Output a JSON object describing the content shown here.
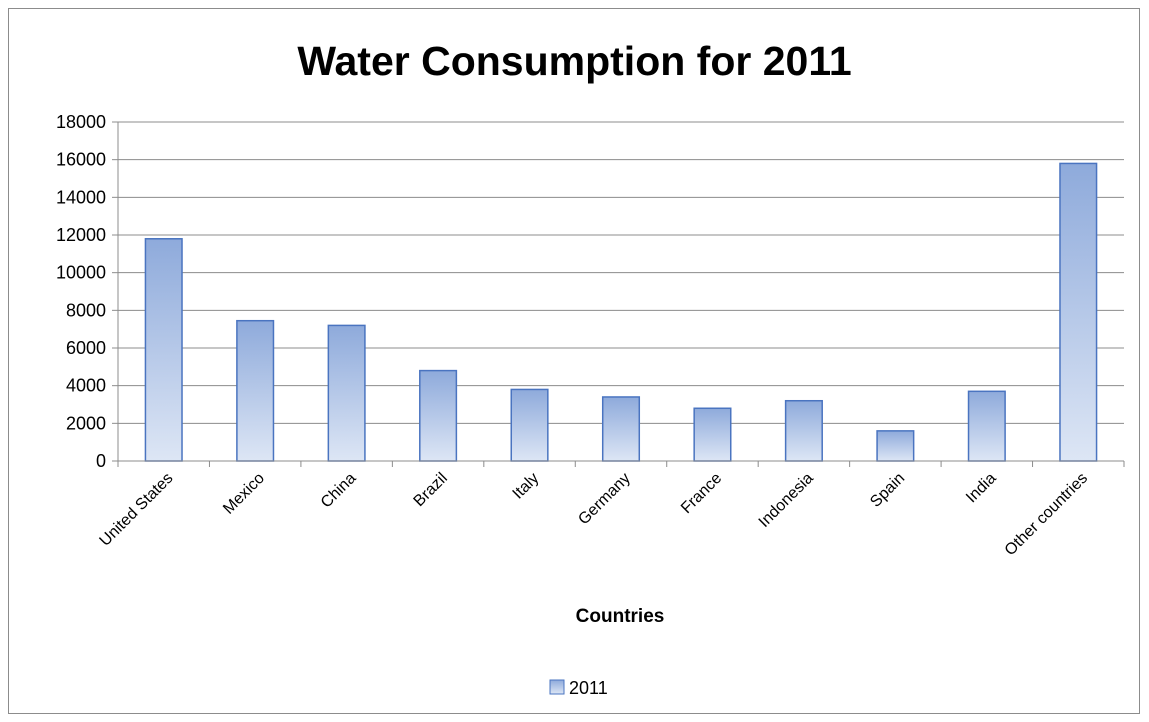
{
  "chart_data": {
    "type": "bar",
    "title": "Water Consumption for 2011",
    "xlabel": "Countries",
    "ylabel": "",
    "categories": [
      "United States",
      "Mexico",
      "China",
      "Brazil",
      "Italy",
      "Germany",
      "France",
      "Indonesia",
      "Spain",
      "India",
      "Other countries"
    ],
    "series": [
      {
        "name": "2011",
        "values": [
          11800,
          7450,
          7200,
          4800,
          3800,
          3400,
          2800,
          3200,
          1600,
          3700,
          15800
        ]
      }
    ],
    "ylim": [
      0,
      18000
    ],
    "yticks": [
      0,
      2000,
      4000,
      6000,
      8000,
      10000,
      12000,
      14000,
      16000,
      18000
    ],
    "grid": true,
    "legend_position": "bottom",
    "colors": {
      "bar_top": "#8eaadb",
      "bar_bottom": "#dde6f5",
      "bar_border": "#4a74c0",
      "grid": "#8c8c8c"
    }
  }
}
